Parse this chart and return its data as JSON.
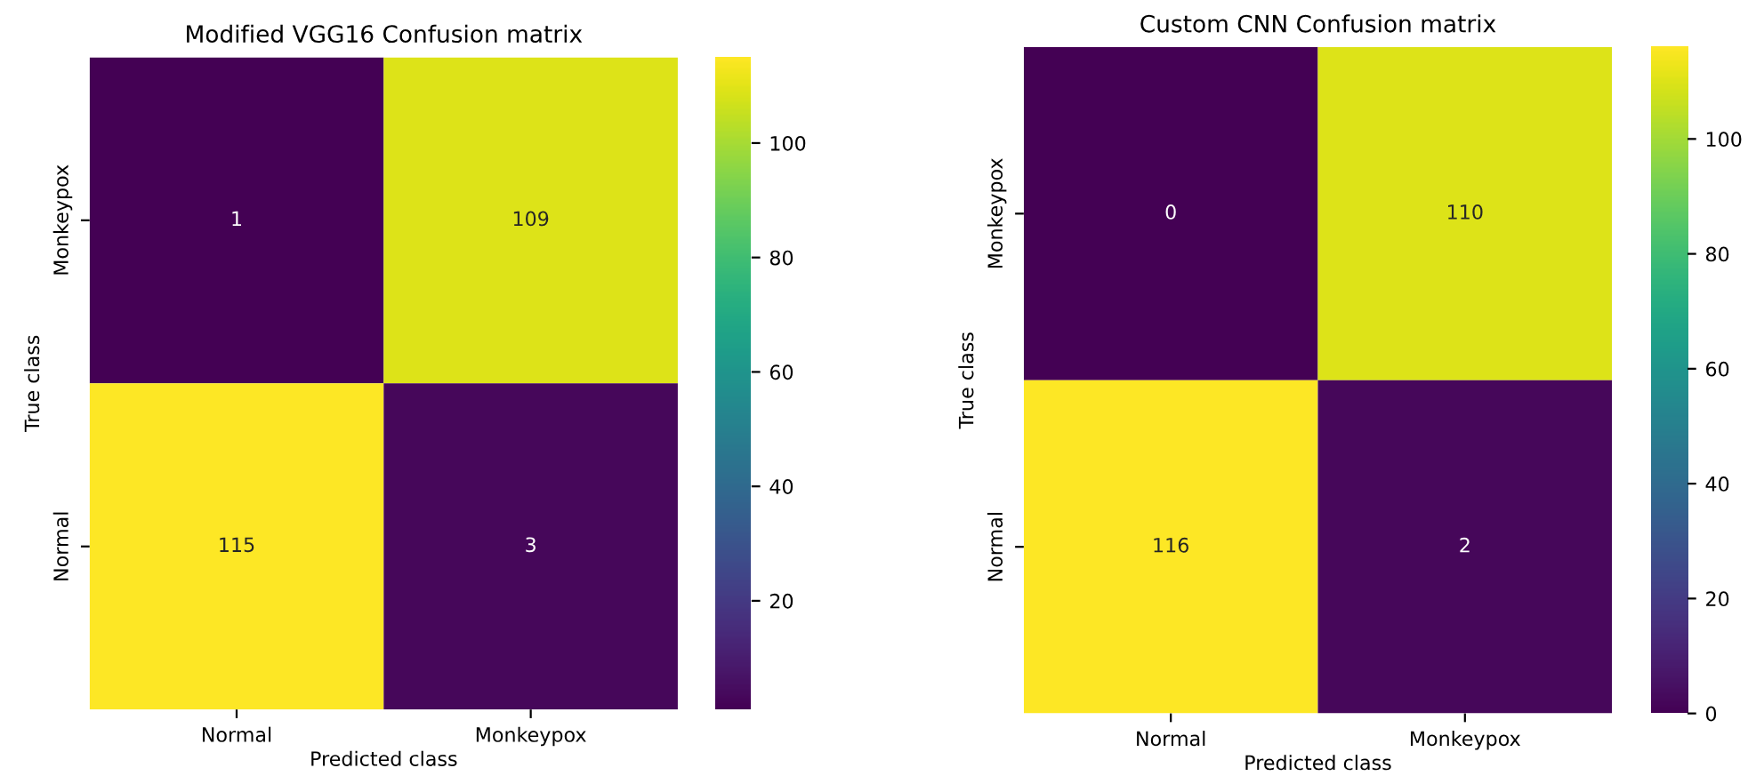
{
  "chart_data": [
    {
      "type": "heatmap",
      "title": "Modified VGG16 Confusion matrix",
      "xlabel": "Predicted class",
      "ylabel": "True class",
      "categories": [
        "Normal",
        "Monkeypox"
      ],
      "y_categories": [
        "Monkeypox",
        "Normal"
      ],
      "cells": [
        [
          1,
          109
        ],
        [
          115,
          3
        ]
      ],
      "data_labels": true,
      "clim": [
        1,
        115
      ],
      "cticks": [
        20,
        40,
        60,
        80,
        100
      ]
    },
    {
      "type": "heatmap",
      "title": "Custom CNN Confusion matrix",
      "xlabel": "Predicted class",
      "ylabel": "True class",
      "categories": [
        "Normal",
        "Monkeypox"
      ],
      "y_categories": [
        "Monkeypox",
        "Normal"
      ],
      "cells": [
        [
          0,
          110
        ],
        [
          116,
          2
        ]
      ],
      "data_labels": true,
      "clim": [
        0,
        116
      ],
      "cticks": [
        0,
        20,
        40,
        60,
        80,
        100
      ]
    }
  ]
}
